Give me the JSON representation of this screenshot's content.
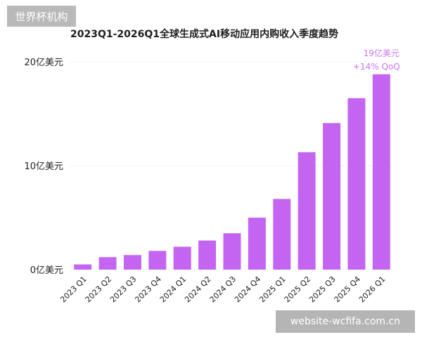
{
  "watermark_top": "世界杯机构",
  "watermark_bottom": "website-wcfifa.com.cn",
  "chart_data": {
    "type": "bar",
    "title": "2023Q1-2026Q1全球生成式AI移动应用内购收入季度趋势",
    "xlabel": "",
    "ylabel": "",
    "unit": "亿美元",
    "ylim": [
      0,
      20
    ],
    "yticks": [
      0,
      10,
      20
    ],
    "ytick_labels": [
      "0亿美元",
      "10亿美元",
      "20亿美元"
    ],
    "grid": true,
    "categories": [
      "2023 Q1",
      "2023 Q2",
      "2023 Q3",
      "2023 Q4",
      "2024 Q1",
      "2024 Q2",
      "2024 Q3",
      "2024 Q4",
      "2025 Q1",
      "2025 Q2",
      "2025 Q3",
      "2025 Q4",
      "2026 Q1"
    ],
    "values": [
      0.5,
      1.2,
      1.4,
      1.8,
      2.2,
      2.8,
      3.5,
      5.0,
      6.8,
      11.3,
      14.1,
      16.5,
      18.8
    ],
    "bar_color": "#c465f2",
    "annotation": {
      "category": "2026 Q1",
      "line1": "19亿美元",
      "line2": "+14% QoQ",
      "color": "#c976ee"
    }
  }
}
